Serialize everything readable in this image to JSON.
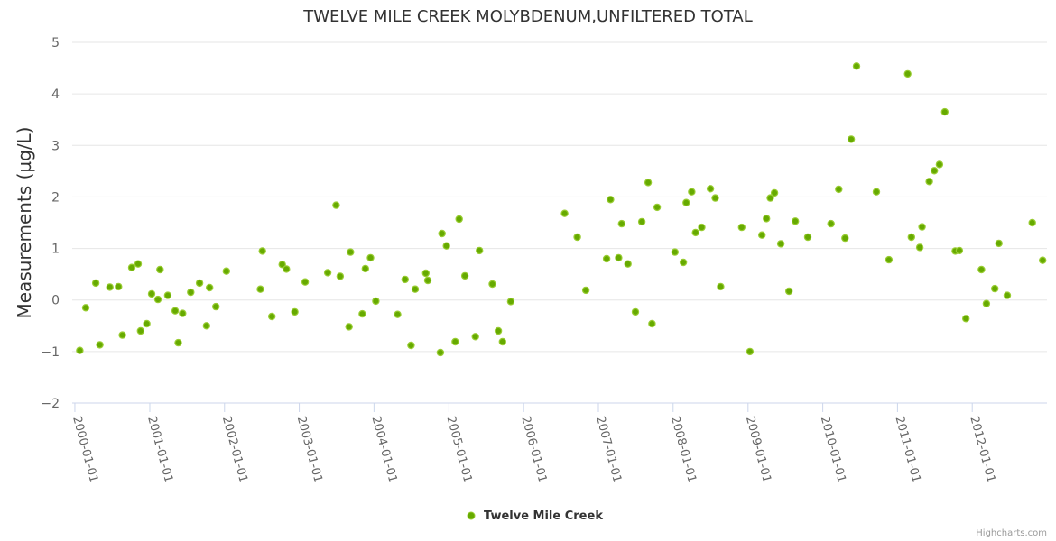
{
  "chart_data": {
    "type": "scatter",
    "title": "TWELVE MILE CREEK MOLYBDENUM,UNFILTERED TOTAL",
    "ylabel": "Measurements (µg/L)",
    "xlabel": "",
    "ylim": [
      -2,
      5
    ],
    "yticks": [
      -2,
      -1,
      0,
      1,
      2,
      3,
      4,
      5
    ],
    "xlim": [
      "1999-12-19",
      "2012-12-31"
    ],
    "xticks": [
      "2000-01-01",
      "2001-01-01",
      "2002-01-01",
      "2003-01-01",
      "2004-01-01",
      "2005-01-01",
      "2006-01-01",
      "2007-01-01",
      "2008-01-01",
      "2009-01-01",
      "2010-01-01",
      "2011-01-01",
      "2012-01-01"
    ],
    "grid": true,
    "legend_position": "bottom-center",
    "color": "#7cb5ec",
    "marker_fill": "#66aa00",
    "marker_stroke": "#99cc33",
    "series": [
      {
        "name": "Twelve Mile Creek",
        "points": [
          [
            "2000-01-25",
            -0.98
          ],
          [
            "2000-02-23",
            -0.15
          ],
          [
            "2000-04-12",
            0.33
          ],
          [
            "2000-05-02",
            -0.87
          ],
          [
            "2000-06-20",
            0.25
          ],
          [
            "2000-08-01",
            0.26
          ],
          [
            "2000-08-20",
            -0.68
          ],
          [
            "2000-10-05",
            0.63
          ],
          [
            "2000-11-05",
            0.7
          ],
          [
            "2000-11-17",
            -0.6
          ],
          [
            "2000-12-17",
            -0.46
          ],
          [
            "2001-01-10",
            0.12
          ],
          [
            "2001-02-10",
            0.01
          ],
          [
            "2001-02-20",
            0.59
          ],
          [
            "2001-03-30",
            0.09
          ],
          [
            "2001-05-05",
            -0.21
          ],
          [
            "2001-05-20",
            -0.83
          ],
          [
            "2001-06-10",
            -0.26
          ],
          [
            "2001-07-20",
            0.15
          ],
          [
            "2001-09-01",
            0.33
          ],
          [
            "2001-10-05",
            -0.5
          ],
          [
            "2001-10-20",
            0.24
          ],
          [
            "2001-11-20",
            -0.13
          ],
          [
            "2002-01-10",
            0.56
          ],
          [
            "2002-06-25",
            0.21
          ],
          [
            "2002-07-05",
            0.95
          ],
          [
            "2002-08-20",
            -0.32
          ],
          [
            "2002-10-10",
            0.69
          ],
          [
            "2002-10-30",
            0.6
          ],
          [
            "2002-12-10",
            -0.23
          ],
          [
            "2003-01-30",
            0.35
          ],
          [
            "2003-05-20",
            0.53
          ],
          [
            "2003-06-30",
            1.84
          ],
          [
            "2003-07-20",
            0.46
          ],
          [
            "2003-09-01",
            -0.52
          ],
          [
            "2003-09-08",
            0.93
          ],
          [
            "2003-11-05",
            -0.27
          ],
          [
            "2003-11-20",
            0.61
          ],
          [
            "2003-12-15",
            0.82
          ],
          [
            "2004-01-10",
            -0.02
          ],
          [
            "2004-04-25",
            -0.28
          ],
          [
            "2004-06-01",
            0.4
          ],
          [
            "2004-06-30",
            -0.88
          ],
          [
            "2004-07-20",
            0.21
          ],
          [
            "2004-09-10",
            0.52
          ],
          [
            "2004-09-20",
            0.38
          ],
          [
            "2004-11-20",
            -1.02
          ],
          [
            "2004-11-28",
            1.29
          ],
          [
            "2004-12-20",
            1.05
          ],
          [
            "2005-02-01",
            -0.81
          ],
          [
            "2005-02-20",
            1.57
          ],
          [
            "2005-03-20",
            0.47
          ],
          [
            "2005-05-10",
            -0.71
          ],
          [
            "2005-05-30",
            0.96
          ],
          [
            "2005-08-01",
            0.31
          ],
          [
            "2005-08-30",
            -0.6
          ],
          [
            "2005-09-20",
            -0.81
          ],
          [
            "2005-10-30",
            -0.03
          ],
          [
            "2006-07-20",
            1.68
          ],
          [
            "2006-09-20",
            1.22
          ],
          [
            "2006-11-01",
            0.19
          ],
          [
            "2007-02-10",
            0.8
          ],
          [
            "2007-03-01",
            1.95
          ],
          [
            "2007-04-10",
            0.82
          ],
          [
            "2007-04-25",
            1.48
          ],
          [
            "2007-05-25",
            0.7
          ],
          [
            "2007-07-01",
            -0.23
          ],
          [
            "2007-08-01",
            1.52
          ],
          [
            "2007-09-01",
            2.28
          ],
          [
            "2007-09-20",
            -0.46
          ],
          [
            "2007-10-15",
            1.8
          ],
          [
            "2008-01-10",
            0.93
          ],
          [
            "2008-02-20",
            0.73
          ],
          [
            "2008-03-05",
            1.89
          ],
          [
            "2008-04-01",
            2.1
          ],
          [
            "2008-04-20",
            1.31
          ],
          [
            "2008-05-20",
            1.41
          ],
          [
            "2008-07-01",
            2.16
          ],
          [
            "2008-07-25",
            1.98
          ],
          [
            "2008-08-20",
            0.26
          ],
          [
            "2008-12-01",
            1.41
          ],
          [
            "2009-01-10",
            -1.0
          ],
          [
            "2009-03-10",
            1.26
          ],
          [
            "2009-04-01",
            1.58
          ],
          [
            "2009-04-20",
            1.98
          ],
          [
            "2009-05-10",
            2.08
          ],
          [
            "2009-06-10",
            1.09
          ],
          [
            "2009-07-20",
            0.17
          ],
          [
            "2009-08-20",
            1.53
          ],
          [
            "2009-10-20",
            1.22
          ],
          [
            "2010-02-10",
            1.48
          ],
          [
            "2010-03-20",
            2.15
          ],
          [
            "2010-04-20",
            1.2
          ],
          [
            "2010-05-20",
            3.12
          ],
          [
            "2010-06-15",
            4.54
          ],
          [
            "2010-09-20",
            2.1
          ],
          [
            "2010-11-20",
            0.78
          ],
          [
            "2011-02-20",
            4.39
          ],
          [
            "2011-03-10",
            1.22
          ],
          [
            "2011-04-20",
            1.02
          ],
          [
            "2011-05-01",
            1.42
          ],
          [
            "2011-06-05",
            2.3
          ],
          [
            "2011-06-30",
            2.51
          ],
          [
            "2011-07-25",
            2.63
          ],
          [
            "2011-08-20",
            3.65
          ],
          [
            "2011-10-10",
            0.95
          ],
          [
            "2011-10-30",
            0.96
          ],
          [
            "2011-12-01",
            -0.36
          ],
          [
            "2012-02-15",
            0.59
          ],
          [
            "2012-03-10",
            -0.07
          ],
          [
            "2012-04-20",
            0.22
          ],
          [
            "2012-05-10",
            1.1
          ],
          [
            "2012-06-20",
            0.09
          ],
          [
            "2012-10-20",
            1.5
          ],
          [
            "2012-12-10",
            0.77
          ]
        ]
      }
    ]
  },
  "credits": "Highcharts.com"
}
